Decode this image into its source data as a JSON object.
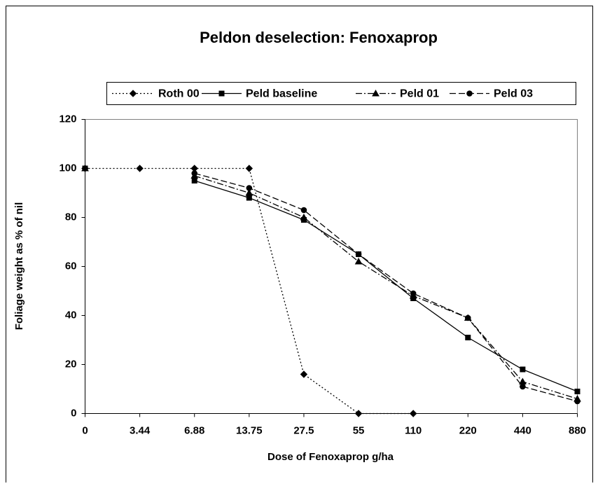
{
  "chart_data": {
    "type": "line",
    "title": "Peldon deselection: Fenoxaprop",
    "x_label": "Dose of Fenoxaprop g/ha",
    "y_label": "Foliage weight as % of nil",
    "categories": [
      "0",
      "3.44",
      "6.88",
      "13.75",
      "27.5",
      "55",
      "110",
      "220",
      "440",
      "880"
    ],
    "ylim": [
      0,
      120
    ],
    "yticks": [
      0,
      20,
      40,
      60,
      80,
      100,
      120
    ],
    "grid": false,
    "series": [
      {
        "name": "Roth 00",
        "color": "#000000",
        "marker": "diamond",
        "dash": "2,3",
        "values": [
          100,
          100,
          100,
          100,
          16,
          0,
          0,
          null,
          null,
          null
        ]
      },
      {
        "name": "Peld baseline",
        "color": "#000000",
        "marker": "square",
        "dash": "none",
        "values": [
          100,
          null,
          95,
          88,
          79,
          65,
          47,
          31,
          18,
          9
        ]
      },
      {
        "name": "Peld 01",
        "color": "#000000",
        "marker": "triangle",
        "dash": "9,3,2,3",
        "values": [
          100,
          null,
          97,
          90,
          80,
          62,
          48,
          39,
          13,
          6
        ]
      },
      {
        "name": "Peld 03",
        "color": "#000000",
        "marker": "circle",
        "dash": "9,4",
        "values": [
          100,
          null,
          98,
          92,
          83,
          65,
          49,
          39,
          11,
          5
        ]
      }
    ]
  }
}
